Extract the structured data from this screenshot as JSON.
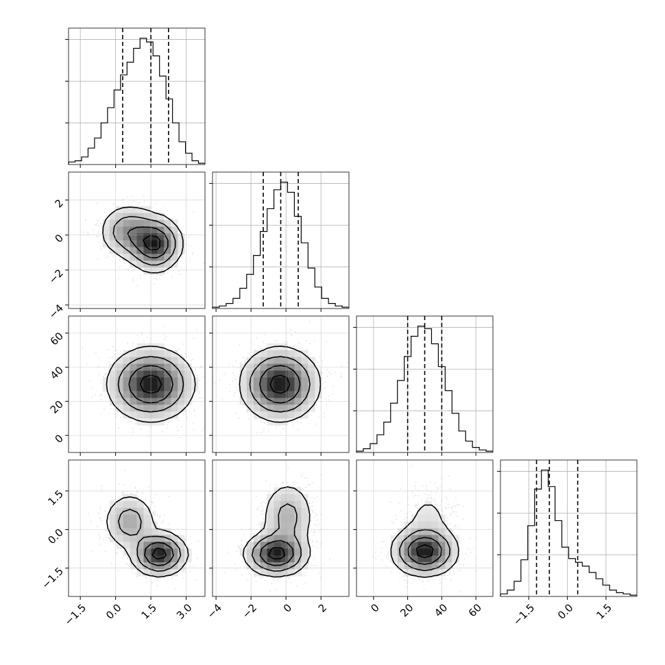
{
  "chart_data": {
    "type": "corner",
    "n_params": 4,
    "grid": true,
    "params": [
      {
        "range": [
          -2.0,
          3.8
        ],
        "ticks": [
          -1.5,
          0.0,
          1.5,
          3.0
        ],
        "tick_labels": [
          "−1.5",
          "0.0",
          "1.5",
          "3.0"
        ],
        "quantiles": [
          0.3,
          1.5,
          2.25
        ],
        "hist_counts": [
          0.02,
          0.03,
          0.06,
          0.13,
          0.21,
          0.33,
          0.45,
          0.59,
          0.71,
          0.81,
          0.92,
          1.0,
          0.97,
          0.86,
          0.7,
          0.52,
          0.33,
          0.18,
          0.09,
          0.03,
          0.01
        ],
        "hist_label": "",
        "xlabel": ""
      },
      {
        "range": [
          -4.2,
          3.6
        ],
        "ticks": [
          -4,
          -2,
          0,
          2
        ],
        "tick_labels": [
          "−4",
          "−2",
          "0",
          "2"
        ],
        "quantiles": [
          -1.3,
          -0.3,
          0.7
        ],
        "hist_counts": [
          0.01,
          0.02,
          0.04,
          0.08,
          0.16,
          0.27,
          0.42,
          0.61,
          0.79,
          0.94,
          1.0,
          0.92,
          0.73,
          0.52,
          0.32,
          0.17,
          0.08,
          0.04,
          0.02,
          0.01
        ],
        "hist_label": "",
        "xlabel": ""
      },
      {
        "range": [
          -10,
          70
        ],
        "ticks": [
          0,
          20,
          40,
          60
        ],
        "tick_labels": [
          "0",
          "20",
          "40",
          "60"
        ],
        "quantiles": [
          20,
          30,
          40
        ],
        "hist_counts": [
          0.01,
          0.03,
          0.07,
          0.14,
          0.24,
          0.39,
          0.57,
          0.76,
          0.92,
          1.0,
          0.98,
          0.86,
          0.68,
          0.49,
          0.31,
          0.17,
          0.09,
          0.04,
          0.02,
          0.01
        ],
        "hist_label": "",
        "xlabel": ""
      },
      {
        "range": [
          -2.6,
          2.7
        ],
        "ticks": [
          -1.5,
          0.0,
          1.5
        ],
        "tick_labels": [
          "−1.5",
          "0.0",
          "1.5"
        ],
        "quantiles": [
          -1.2,
          -0.7,
          0.4
        ],
        "hist_counts": [
          0.02,
          0.05,
          0.12,
          0.29,
          0.56,
          0.85,
          1.0,
          0.87,
          0.6,
          0.39,
          0.3,
          0.27,
          0.24,
          0.19,
          0.14,
          0.09,
          0.05,
          0.03,
          0.02,
          0.01
        ],
        "hist_label": "",
        "xlabel": ""
      }
    ],
    "pairs": [
      {
        "x": 0,
        "y": 1,
        "components": [
          {
            "w": 0.35,
            "mx": 0.55,
            "my": 0.2,
            "sx": 0.6,
            "sy": 0.75
          },
          {
            "w": 0.65,
            "mx": 1.65,
            "my": -0.5,
            "sx": 0.55,
            "sy": 0.75
          }
        ]
      },
      {
        "x": 0,
        "y": 2,
        "components": [
          {
            "w": 1.0,
            "mx": 1.5,
            "my": 30,
            "sx": 0.85,
            "sy": 10
          }
        ]
      },
      {
        "x": 1,
        "y": 2,
        "components": [
          {
            "w": 1.0,
            "mx": -0.35,
            "my": 30,
            "sx": 1.05,
            "sy": 10
          }
        ]
      },
      {
        "x": 0,
        "y": 3,
        "components": [
          {
            "w": 0.35,
            "mx": 0.6,
            "my": 0.3,
            "sx": 0.55,
            "sy": 0.55
          },
          {
            "w": 0.65,
            "mx": 1.85,
            "my": -0.95,
            "sx": 0.55,
            "sy": 0.4
          }
        ]
      },
      {
        "x": 1,
        "y": 3,
        "components": [
          {
            "w": 0.35,
            "mx": 0.1,
            "my": 0.5,
            "sx": 0.75,
            "sy": 0.7
          },
          {
            "w": 0.65,
            "mx": -0.55,
            "my": -0.95,
            "sx": 0.85,
            "sy": 0.4
          }
        ]
      },
      {
        "x": 2,
        "y": 3,
        "components": [
          {
            "w": 0.15,
            "mx": 32,
            "my": 0.5,
            "sx": 9,
            "sy": 0.7
          },
          {
            "w": 0.85,
            "mx": 30,
            "my": -0.85,
            "sx": 9,
            "sy": 0.45
          }
        ]
      }
    ],
    "contour_levels": [
      0.25,
      0.5,
      0.75,
      0.93
    ]
  }
}
